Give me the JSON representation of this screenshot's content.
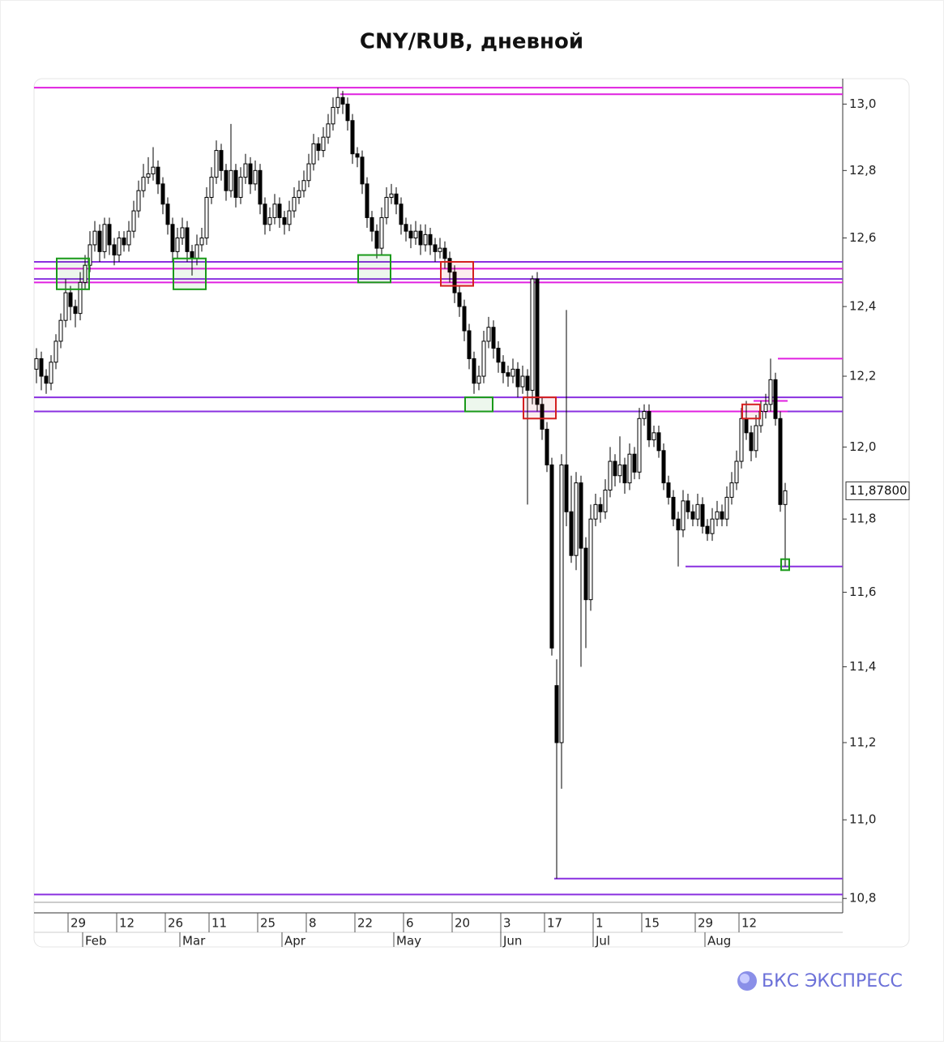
{
  "chart_data": {
    "type": "candlestick",
    "title": "CNY/RUB, дневной",
    "log_scale": true,
    "ylim": [
      10.78,
      13.07
    ],
    "yticks": [
      {
        "value": 10.8,
        "label": "10,8"
      },
      {
        "value": 11.0,
        "label": "11,0"
      },
      {
        "value": 11.2,
        "label": "11,2"
      },
      {
        "value": 11.4,
        "label": "11,4"
      },
      {
        "value": 11.6,
        "label": "11,6"
      },
      {
        "value": 11.8,
        "label": "11,8"
      },
      {
        "value": 12.0,
        "label": "12,0"
      },
      {
        "value": 12.2,
        "label": "12,2"
      },
      {
        "value": 12.4,
        "label": "12,4"
      },
      {
        "value": 12.6,
        "label": "12,6"
      },
      {
        "value": 12.8,
        "label": "12,8"
      },
      {
        "value": 13.0,
        "label": "13,0"
      }
    ],
    "xticks": [
      {
        "value": 7,
        "label": "29"
      },
      {
        "value": 17,
        "label": "12"
      },
      {
        "value": 27,
        "label": "26"
      },
      {
        "value": 36,
        "label": "11"
      },
      {
        "value": 46,
        "label": "25"
      },
      {
        "value": 56,
        "label": "8"
      },
      {
        "value": 66,
        "label": "22"
      },
      {
        "value": 76,
        "label": "6"
      },
      {
        "value": 86,
        "label": "20"
      },
      {
        "value": 96,
        "label": "3"
      },
      {
        "value": 105,
        "label": "17"
      },
      {
        "value": 115,
        "label": "1"
      },
      {
        "value": 125,
        "label": "15"
      },
      {
        "value": 136,
        "label": "29"
      },
      {
        "value": 145,
        "label": "12"
      }
    ],
    "month_ticks": [
      {
        "value": 10,
        "label": "Feb"
      },
      {
        "value": 30,
        "label": "Mar"
      },
      {
        "value": 51,
        "label": "Apr"
      },
      {
        "value": 74,
        "label": "May"
      },
      {
        "value": 96,
        "label": "Jun"
      },
      {
        "value": 115,
        "label": "Jul"
      },
      {
        "value": 138,
        "label": "Aug"
      }
    ],
    "up_color": "#ffffff",
    "down_color": "#000000",
    "ohlc": [
      [
        12.22,
        12.28,
        12.18,
        12.25
      ],
      [
        12.25,
        12.27,
        12.16,
        12.2
      ],
      [
        12.2,
        12.22,
        12.15,
        12.18
      ],
      [
        12.18,
        12.26,
        12.16,
        12.24
      ],
      [
        12.24,
        12.32,
        12.22,
        12.3
      ],
      [
        12.3,
        12.38,
        12.28,
        12.36
      ],
      [
        12.36,
        12.48,
        12.34,
        12.44
      ],
      [
        12.44,
        12.46,
        12.36,
        12.4
      ],
      [
        12.4,
        12.42,
        12.34,
        12.38
      ],
      [
        12.38,
        12.5,
        12.36,
        12.47
      ],
      [
        12.47,
        12.55,
        12.45,
        12.52
      ],
      [
        12.52,
        12.62,
        12.5,
        12.58
      ],
      [
        12.58,
        12.65,
        12.56,
        12.62
      ],
      [
        12.62,
        12.64,
        12.53,
        12.56
      ],
      [
        12.56,
        12.66,
        12.54,
        12.64
      ],
      [
        12.64,
        12.66,
        12.55,
        12.58
      ],
      [
        12.58,
        12.6,
        12.52,
        12.55
      ],
      [
        12.55,
        12.62,
        12.53,
        12.6
      ],
      [
        12.6,
        12.62,
        12.56,
        12.58
      ],
      [
        12.58,
        12.65,
        12.56,
        12.62
      ],
      [
        12.62,
        12.71,
        12.6,
        12.68
      ],
      [
        12.68,
        12.77,
        12.66,
        12.74
      ],
      [
        12.74,
        12.82,
        12.72,
        12.78
      ],
      [
        12.78,
        12.84,
        12.76,
        12.79
      ],
      [
        12.79,
        12.87,
        12.77,
        12.81
      ],
      [
        12.81,
        12.83,
        12.73,
        12.76
      ],
      [
        12.76,
        12.78,
        12.67,
        12.7
      ],
      [
        12.7,
        12.72,
        12.61,
        12.64
      ],
      [
        12.64,
        12.66,
        12.53,
        12.56
      ],
      [
        12.56,
        12.63,
        12.54,
        12.6
      ],
      [
        12.6,
        12.66,
        12.58,
        12.63
      ],
      [
        12.63,
        12.65,
        12.53,
        12.56
      ],
      [
        12.56,
        12.58,
        12.49,
        12.54
      ],
      [
        12.54,
        12.61,
        12.52,
        12.58
      ],
      [
        12.58,
        12.63,
        12.56,
        12.6
      ],
      [
        12.6,
        12.75,
        12.58,
        12.72
      ],
      [
        12.72,
        12.81,
        12.7,
        12.78
      ],
      [
        12.78,
        12.89,
        12.76,
        12.86
      ],
      [
        12.86,
        12.88,
        12.77,
        12.8
      ],
      [
        12.8,
        12.82,
        12.71,
        12.74
      ],
      [
        12.74,
        12.94,
        12.72,
        12.8
      ],
      [
        12.8,
        12.82,
        12.69,
        12.72
      ],
      [
        12.72,
        12.81,
        12.7,
        12.78
      ],
      [
        12.78,
        12.85,
        12.76,
        12.82
      ],
      [
        12.82,
        12.84,
        12.73,
        12.76
      ],
      [
        12.76,
        12.83,
        12.74,
        12.8
      ],
      [
        12.8,
        12.82,
        12.67,
        12.7
      ],
      [
        12.7,
        12.72,
        12.61,
        12.64
      ],
      [
        12.64,
        12.69,
        12.62,
        12.66
      ],
      [
        12.66,
        12.73,
        12.64,
        12.7
      ],
      [
        12.7,
        12.72,
        12.63,
        12.66
      ],
      [
        12.66,
        12.68,
        12.61,
        12.64
      ],
      [
        12.64,
        12.71,
        12.62,
        12.68
      ],
      [
        12.68,
        12.75,
        12.66,
        12.72
      ],
      [
        12.72,
        12.77,
        12.7,
        12.74
      ],
      [
        12.74,
        12.8,
        12.72,
        12.77
      ],
      [
        12.77,
        12.85,
        12.75,
        12.82
      ],
      [
        12.82,
        12.91,
        12.8,
        12.88
      ],
      [
        12.88,
        12.9,
        12.83,
        12.86
      ],
      [
        12.86,
        12.93,
        12.84,
        12.9
      ],
      [
        12.9,
        12.97,
        12.88,
        12.94
      ],
      [
        12.94,
        13.02,
        12.92,
        12.99
      ],
      [
        12.99,
        13.05,
        12.97,
        13.02
      ],
      [
        13.02,
        13.04,
        12.97,
        13.0
      ],
      [
        13.0,
        13.02,
        12.92,
        12.95
      ],
      [
        12.95,
        12.97,
        12.82,
        12.85
      ],
      [
        12.85,
        12.87,
        12.81,
        12.84
      ],
      [
        12.84,
        12.86,
        12.73,
        12.76
      ],
      [
        12.76,
        12.78,
        12.63,
        12.66
      ],
      [
        12.66,
        12.68,
        12.59,
        12.62
      ],
      [
        12.62,
        12.64,
        12.54,
        12.57
      ],
      [
        12.57,
        12.69,
        12.55,
        12.66
      ],
      [
        12.66,
        12.75,
        12.64,
        12.72
      ],
      [
        12.72,
        12.76,
        12.7,
        12.73
      ],
      [
        12.73,
        12.75,
        12.67,
        12.7
      ],
      [
        12.7,
        12.72,
        12.61,
        12.64
      ],
      [
        12.64,
        12.66,
        12.59,
        12.62
      ],
      [
        12.62,
        12.64,
        12.57,
        12.6
      ],
      [
        12.6,
        12.65,
        12.58,
        12.62
      ],
      [
        12.62,
        12.64,
        12.55,
        12.58
      ],
      [
        12.58,
        12.64,
        12.56,
        12.61
      ],
      [
        12.61,
        12.63,
        12.55,
        12.58
      ],
      [
        12.58,
        12.6,
        12.53,
        12.56
      ],
      [
        12.56,
        12.6,
        12.54,
        12.57
      ],
      [
        12.57,
        12.59,
        12.51,
        12.54
      ],
      [
        12.54,
        12.56,
        12.47,
        12.5
      ],
      [
        12.5,
        12.52,
        12.41,
        12.44
      ],
      [
        12.44,
        12.46,
        12.37,
        12.4
      ],
      [
        12.4,
        12.42,
        12.3,
        12.33
      ],
      [
        12.33,
        12.35,
        12.22,
        12.25
      ],
      [
        12.25,
        12.27,
        12.15,
        12.18
      ],
      [
        12.18,
        12.23,
        12.16,
        12.2
      ],
      [
        12.2,
        12.33,
        12.18,
        12.3
      ],
      [
        12.3,
        12.37,
        12.28,
        12.34
      ],
      [
        12.34,
        12.36,
        12.25,
        12.28
      ],
      [
        12.28,
        12.3,
        12.21,
        12.24
      ],
      [
        12.24,
        12.26,
        12.18,
        12.21
      ],
      [
        12.21,
        12.23,
        12.17,
        12.2
      ],
      [
        12.2,
        12.25,
        12.18,
        12.22
      ],
      [
        12.22,
        12.24,
        12.14,
        12.17
      ],
      [
        12.17,
        12.23,
        12.15,
        12.2
      ],
      [
        12.2,
        12.22,
        11.84,
        12.16
      ],
      [
        12.16,
        12.49,
        12.12,
        12.48
      ],
      [
        12.48,
        12.5,
        12.1,
        12.12
      ],
      [
        12.12,
        12.14,
        12.02,
        12.05
      ],
      [
        12.05,
        12.07,
        11.93,
        11.95
      ],
      [
        11.95,
        11.97,
        11.43,
        11.45
      ],
      [
        11.35,
        11.42,
        10.85,
        11.2
      ],
      [
        11.2,
        11.98,
        11.08,
        11.95
      ],
      [
        11.95,
        12.39,
        11.78,
        11.82
      ],
      [
        11.82,
        11.92,
        11.68,
        11.7
      ],
      [
        11.7,
        11.93,
        11.66,
        11.9
      ],
      [
        11.9,
        11.92,
        11.4,
        11.72
      ],
      [
        11.72,
        11.75,
        11.45,
        11.58
      ],
      [
        11.58,
        11.84,
        11.55,
        11.8
      ],
      [
        11.8,
        11.87,
        11.78,
        11.84
      ],
      [
        11.84,
        11.86,
        11.79,
        11.82
      ],
      [
        11.82,
        11.91,
        11.8,
        11.88
      ],
      [
        11.88,
        12.0,
        11.86,
        11.96
      ],
      [
        11.96,
        11.98,
        11.89,
        11.92
      ],
      [
        11.92,
        12.03,
        11.9,
        11.95
      ],
      [
        11.95,
        11.97,
        11.87,
        11.9
      ],
      [
        11.9,
        12.01,
        11.88,
        11.98
      ],
      [
        11.98,
        12.0,
        11.91,
        11.93
      ],
      [
        11.93,
        12.11,
        11.91,
        12.08
      ],
      [
        12.08,
        12.12,
        12.06,
        12.1
      ],
      [
        12.1,
        12.12,
        12.0,
        12.02
      ],
      [
        12.02,
        12.06,
        12.0,
        12.04
      ],
      [
        12.04,
        12.06,
        11.97,
        11.99
      ],
      [
        11.99,
        12.01,
        11.88,
        11.9
      ],
      [
        11.9,
        11.92,
        11.84,
        11.86
      ],
      [
        11.86,
        11.88,
        11.78,
        11.8
      ],
      [
        11.8,
        11.82,
        11.67,
        11.77
      ],
      [
        11.77,
        11.88,
        11.75,
        11.85
      ],
      [
        11.85,
        11.87,
        11.8,
        11.82
      ],
      [
        11.82,
        11.84,
        11.78,
        11.8
      ],
      [
        11.8,
        11.87,
        11.78,
        11.84
      ],
      [
        11.84,
        11.86,
        11.76,
        11.78
      ],
      [
        11.78,
        11.8,
        11.74,
        11.76
      ],
      [
        11.76,
        11.83,
        11.74,
        11.8
      ],
      [
        11.8,
        11.85,
        11.78,
        11.82
      ],
      [
        11.82,
        11.84,
        11.78,
        11.8
      ],
      [
        11.8,
        11.89,
        11.78,
        11.86
      ],
      [
        11.86,
        11.93,
        11.84,
        11.9
      ],
      [
        11.9,
        11.99,
        11.88,
        11.96
      ],
      [
        11.96,
        12.11,
        11.94,
        12.08
      ],
      [
        12.08,
        12.13,
        12.02,
        12.04
      ],
      [
        12.04,
        12.06,
        11.96,
        11.99
      ],
      [
        11.99,
        12.09,
        11.97,
        12.06
      ],
      [
        12.06,
        12.13,
        12.04,
        12.1
      ],
      [
        12.1,
        12.15,
        12.08,
        12.12
      ],
      [
        12.12,
        12.25,
        12.1,
        12.19
      ],
      [
        12.19,
        12.21,
        12.06,
        12.08
      ],
      [
        12.08,
        12.1,
        11.82,
        11.84
      ],
      [
        11.84,
        11.9,
        11.67,
        11.878
      ]
    ],
    "levels": [
      {
        "value": 13.05,
        "start": 0,
        "color": "#e020e0"
      },
      {
        "value": 13.03,
        "start": 63,
        "color": "#e020e0"
      },
      {
        "value": 12.53,
        "start": 0,
        "color": "#8a30e0"
      },
      {
        "value": 12.51,
        "start": 0,
        "color": "#e020e0"
      },
      {
        "value": 12.48,
        "start": 0,
        "color": "#8a30e0"
      },
      {
        "value": 12.47,
        "start": 0,
        "color": "#e020e0"
      },
      {
        "value": 12.25,
        "start": 153,
        "color": "#e020e0"
      },
      {
        "value": 12.14,
        "start": 0,
        "color": "#8a30e0"
      },
      {
        "value": 12.1,
        "start": 0,
        "color": "#8a30e0"
      },
      {
        "value": 12.13,
        "start": 148,
        "end": 154,
        "color": "#e020e0"
      },
      {
        "value": 12.1,
        "start": 126,
        "end": 154,
        "color": "#e020e0"
      },
      {
        "value": 11.67,
        "start": 134,
        "color": "#8a30e0"
      },
      {
        "value": 10.85,
        "start": 107,
        "color": "#8a30e0"
      },
      {
        "value": 10.81,
        "start": 0,
        "color": "#8a30e0"
      }
    ],
    "boxes": [
      {
        "start": 5,
        "end": 10,
        "low": 12.45,
        "high": 12.54,
        "color": "#1a9a1a"
      },
      {
        "start": 29,
        "end": 34,
        "low": 12.45,
        "high": 12.54,
        "color": "#1a9a1a"
      },
      {
        "start": 67,
        "end": 72,
        "low": 12.47,
        "high": 12.55,
        "color": "#1a9a1a"
      },
      {
        "start": 84,
        "end": 89,
        "low": 12.46,
        "high": 12.53,
        "color": "#d42020"
      },
      {
        "start": 89,
        "end": 93,
        "low": 12.1,
        "high": 12.14,
        "color": "#1a9a1a"
      },
      {
        "start": 101,
        "end": 106,
        "low": 12.08,
        "high": 12.14,
        "color": "#d42020"
      },
      {
        "start": 146,
        "end": 148,
        "low": 12.08,
        "high": 12.12,
        "color": "#d42020"
      },
      {
        "start": 154,
        "end": 154,
        "low": 11.66,
        "high": 11.69,
        "color": "#1a9a1a"
      }
    ],
    "last_price": {
      "value": 11.878,
      "label": "11,87800"
    }
  },
  "brand": "БКС ЭКСПРЕСС"
}
